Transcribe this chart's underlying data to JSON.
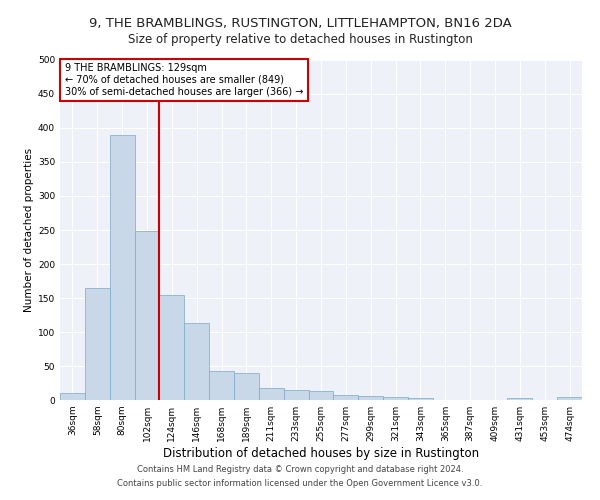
{
  "title": "9, THE BRAMBLINGS, RUSTINGTON, LITTLEHAMPTON, BN16 2DA",
  "subtitle": "Size of property relative to detached houses in Rustington",
  "xlabel": "Distribution of detached houses by size in Rustington",
  "ylabel": "Number of detached properties",
  "categories": [
    "36sqm",
    "58sqm",
    "80sqm",
    "102sqm",
    "124sqm",
    "146sqm",
    "168sqm",
    "189sqm",
    "211sqm",
    "233sqm",
    "255sqm",
    "277sqm",
    "299sqm",
    "321sqm",
    "343sqm",
    "365sqm",
    "387sqm",
    "409sqm",
    "431sqm",
    "453sqm",
    "474sqm"
  ],
  "values": [
    11,
    165,
    390,
    248,
    155,
    113,
    42,
    40,
    18,
    15,
    13,
    8,
    6,
    5,
    3,
    0,
    0,
    0,
    3,
    0,
    4
  ],
  "bar_color": "#c8d8e8",
  "bar_edge_color": "#7aa8c8",
  "vline_color": "#cc0000",
  "annotation_lines": [
    "9 THE BRAMBLINGS: 129sqm",
    "← 70% of detached houses are smaller (849)",
    "30% of semi-detached houses are larger (366) →"
  ],
  "annotation_box_color": "#cc0000",
  "ylim": [
    0,
    500
  ],
  "yticks": [
    0,
    50,
    100,
    150,
    200,
    250,
    300,
    350,
    400,
    450,
    500
  ],
  "background_color": "#eef2f8",
  "grid_color": "#ffffff",
  "footer_line1": "Contains HM Land Registry data © Crown copyright and database right 2024.",
  "footer_line2": "Contains public sector information licensed under the Open Government Licence v3.0.",
  "title_fontsize": 9.5,
  "subtitle_fontsize": 8.5,
  "xlabel_fontsize": 8.5,
  "ylabel_fontsize": 7.5,
  "tick_fontsize": 6.5,
  "annotation_fontsize": 7,
  "footer_fontsize": 6
}
